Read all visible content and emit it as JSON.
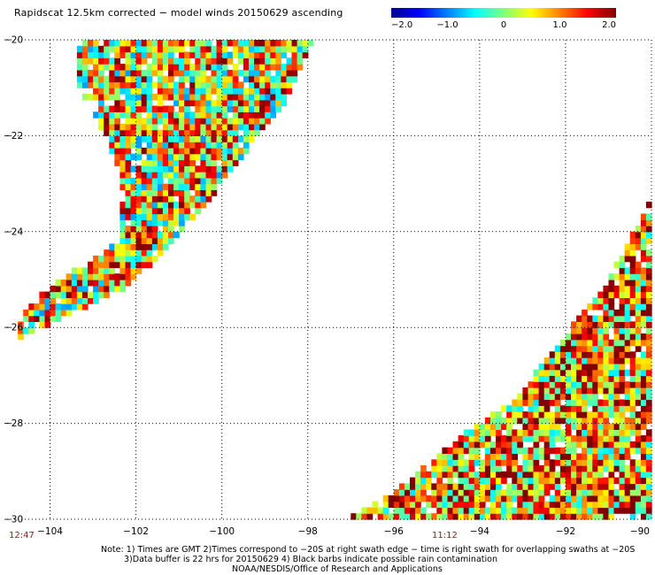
{
  "title": "Rapidscat 12.5km corrected − model winds 20150629 ascending",
  "colorbar": {
    "ticks": [
      "−2.0",
      "−1.0",
      "0",
      "1.0",
      "2.0"
    ],
    "min": -2.0,
    "max": 2.0
  },
  "chart_data": {
    "type": "heatmap",
    "title": "Rapidscat 12.5km corrected − model winds 20150629 ascending",
    "xlabel": "",
    "ylabel": "",
    "xlim": [
      -105,
      -90
    ],
    "ylim": [
      -30,
      -20
    ],
    "x_ticks": [
      -104,
      -102,
      -100,
      -98,
      -96,
      -94,
      -92,
      -90
    ],
    "x_tick_labels": [
      "−104",
      "−102",
      "−100",
      "−98",
      "−96",
      "−94",
      "−92",
      "−90"
    ],
    "y_ticks": [
      -20,
      -22,
      -24,
      -26,
      -28,
      -30
    ],
    "y_tick_labels": [
      "−20",
      "−22",
      "−24",
      "−26",
      "−28",
      "−30"
    ],
    "grid": true,
    "colorscale": "jet",
    "value_range": [
      -2.0,
      2.0
    ],
    "swaths": [
      {
        "description_region": "northwest swath",
        "polygon_lonlat": [
          [
            -103.3,
            -20.0
          ],
          [
            -97.9,
            -20.0
          ],
          [
            -98.6,
            -21.4
          ],
          [
            -99.6,
            -22.5
          ],
          [
            -100.6,
            -23.7
          ],
          [
            -101.2,
            -24.3
          ],
          [
            -102.3,
            -25.2
          ],
          [
            -104.2,
            -26.0
          ],
          [
            -104.8,
            -26.3
          ],
          [
            -104.6,
            -25.6
          ],
          [
            -103.6,
            -24.9
          ],
          [
            -102.4,
            -24.2
          ],
          [
            -102.3,
            -23.2
          ],
          [
            -102.7,
            -22.0
          ],
          [
            -103.4,
            -20.9
          ]
        ],
        "mean_value": 0.6
      },
      {
        "description_region": "southeast swath",
        "polygon_lonlat": [
          [
            -90.0,
            -23.3
          ],
          [
            -90.0,
            -30.0
          ],
          [
            -97.1,
            -30.0
          ],
          [
            -95.8,
            -29.3
          ],
          [
            -94.5,
            -28.3
          ],
          [
            -93.2,
            -27.5
          ],
          [
            -92.3,
            -26.5
          ],
          [
            -91.0,
            -25.0
          ]
        ],
        "mean_value": 0.9
      }
    ]
  },
  "swath_times": {
    "left": "12:47",
    "center": "11:12"
  },
  "notes": {
    "line1": "Note: 1) Times are GMT 2)Times correspond to −20S at right swath edge − time is right swath for overlapping swaths at −20S",
    "line2": "3)Data buffer is 22 hrs for 20150629 4) Black barbs indicate possible rain contamination",
    "line3": "NOAA/NESDIS/Office of Research and Applications"
  },
  "colors": {
    "min_color": "#00008f",
    "max_color": "#800000",
    "grid_color": "#000000"
  }
}
